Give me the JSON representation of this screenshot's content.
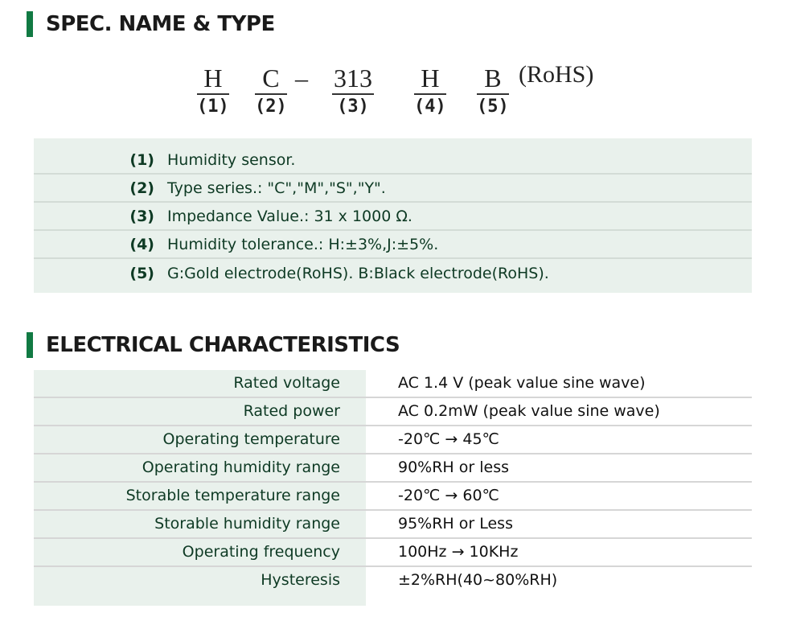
{
  "spec": {
    "heading": "SPEC. NAME & TYPE",
    "code_parts": [
      {
        "letter": "H",
        "index": "(1)"
      },
      {
        "letter": "C",
        "index": "(2)"
      },
      {
        "letter": "313",
        "index": "(3)"
      },
      {
        "letter": "H",
        "index": "(4)"
      },
      {
        "letter": "B",
        "index": "(5)"
      }
    ],
    "dash": "–",
    "rohs": "(RoHS)",
    "items": [
      {
        "num": "(1)",
        "text": "Humidity sensor."
      },
      {
        "num": "(2)",
        "text": "Type series.: \"C\",\"M\",\"S\",\"Y\"."
      },
      {
        "num": "(3)",
        "text": "Impedance Value.: 31 x 1000 Ω."
      },
      {
        "num": "(4)",
        "text": "Humidity tolerance.: H:±3%,J:±5%."
      },
      {
        "num": "(5)",
        "text": "G:Gold electrode(RoHS). B:Black electrode(RoHS)."
      }
    ]
  },
  "electrical": {
    "heading": "ELECTRICAL CHARACTERISTICS",
    "rows": [
      {
        "label": "Rated voltage",
        "value": "AC 1.4 V (peak value sine wave)"
      },
      {
        "label": "Rated power",
        "value": "AC 0.2mW (peak value sine wave)"
      },
      {
        "label": "Operating temperature",
        "value": "-20℃ → 45℃"
      },
      {
        "label": "Operating humidity range",
        "value": "90%RH or less"
      },
      {
        "label": "Storable temperature range",
        "value": "-20℃ → 60℃"
      },
      {
        "label": "Storable humidity range",
        "value": "95%RH or Less"
      },
      {
        "label": "Operating frequency",
        "value": "100Hz → 10KHz"
      },
      {
        "label": "Hysteresis",
        "value": "±2%RH(40~80%RH)"
      }
    ]
  },
  "colors": {
    "accent": "#117a43",
    "panel": "#e9f1ec",
    "label_text": "#0e3a24"
  }
}
